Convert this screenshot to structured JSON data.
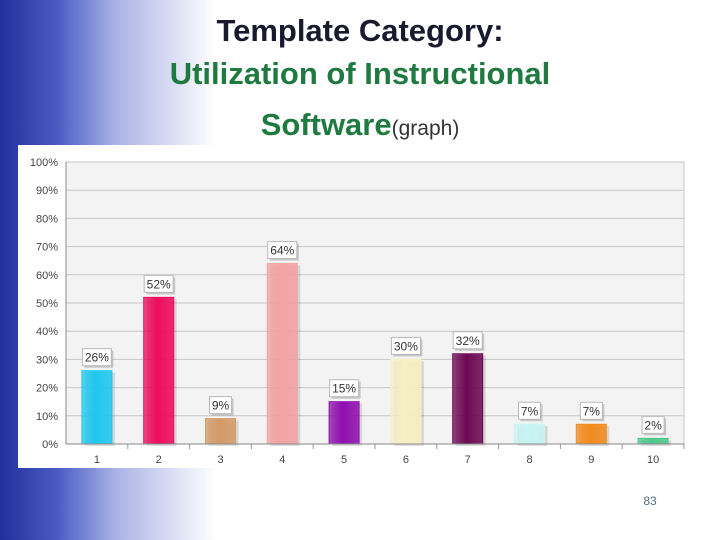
{
  "slide": {
    "title_line1": "Template Category:",
    "title_line2": "Utilization of Instructional",
    "title_line3_main": "Software",
    "title_line3_suffix": "(graph)",
    "page_number": "83"
  },
  "chart_data": {
    "type": "bar",
    "categories": [
      "1",
      "2",
      "3",
      "4",
      "5",
      "6",
      "7",
      "8",
      "9",
      "10"
    ],
    "values": [
      26,
      52,
      9,
      64,
      15,
      30,
      32,
      7,
      7,
      2
    ],
    "data_labels": [
      "26%",
      "52%",
      "9%",
      "64%",
      "15%",
      "30%",
      "32%",
      "7%",
      "7%",
      "2%"
    ],
    "ylim": [
      0,
      100
    ],
    "yticks": [
      0,
      10,
      20,
      30,
      40,
      50,
      60,
      70,
      80,
      90,
      100
    ],
    "ytick_labels": [
      "0%",
      "10%",
      "20%",
      "30%",
      "40%",
      "50%",
      "60%",
      "70%",
      "80%",
      "90%",
      "100%"
    ],
    "grid": true,
    "title": "",
    "xlabel": "",
    "ylabel": "",
    "colors": [
      "#1ec8f0",
      "#ee0c5c",
      "#d49a68",
      "#f4a2a2",
      "#8f0fb0",
      "#f6f0c2",
      "#6e0a55",
      "#c8f4f4",
      "#f28a1c",
      "#4cc88a"
    ]
  }
}
